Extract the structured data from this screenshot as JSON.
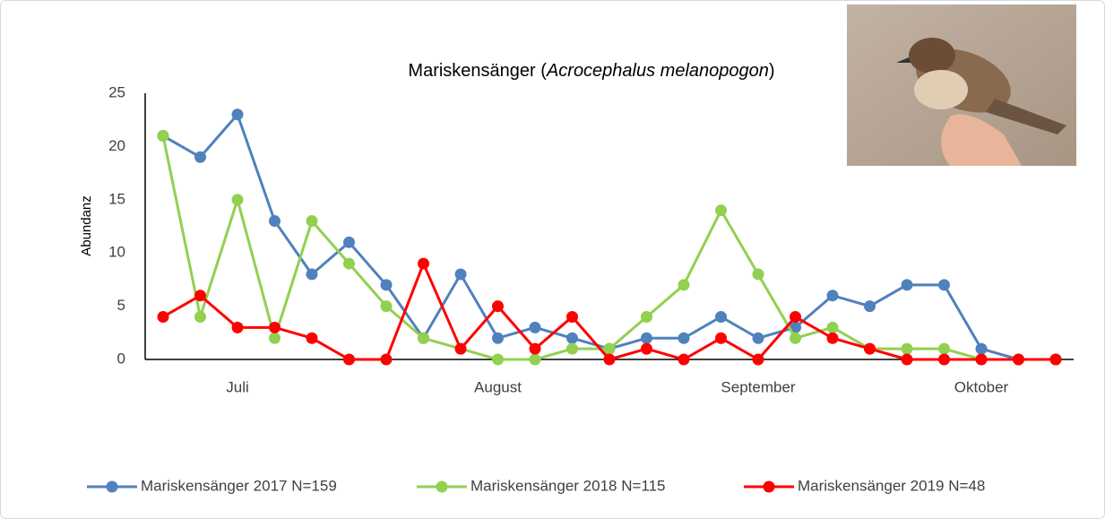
{
  "chart_data": {
    "type": "line",
    "title": [
      "Mariskensänger (",
      "Acrocephalus melanopogon",
      ")"
    ],
    "y_label": "Abundanz",
    "categories": [
      null,
      null,
      "Juli",
      null,
      null,
      null,
      null,
      null,
      null,
      "August",
      null,
      null,
      null,
      null,
      null,
      null,
      "September",
      null,
      null,
      null,
      null,
      null,
      "Oktober",
      null,
      null
    ],
    "ylim": [
      0,
      25
    ],
    "yticks": [
      0,
      5,
      10,
      15,
      20,
      25
    ],
    "grid": false,
    "legend": "bottom",
    "series": [
      {
        "name": "Mariskensänger 2017 N=159",
        "color": "#4f81bd",
        "values": [
          21,
          19,
          23,
          13,
          8,
          11,
          7,
          2,
          8,
          2,
          3,
          2,
          1,
          2,
          2,
          4,
          2,
          3,
          6,
          5,
          7,
          7,
          1,
          0,
          0
        ]
      },
      {
        "name": "Mariskensänger 2018 N=115",
        "color": "#92d050",
        "values": [
          21,
          4,
          15,
          2,
          13,
          9,
          5,
          2,
          1,
          0,
          0,
          1,
          1,
          4,
          7,
          14,
          8,
          2,
          3,
          1,
          1,
          1,
          0,
          0,
          0
        ]
      },
      {
        "name": "Mariskensänger 2019 N=48",
        "color": "#ff0000",
        "values": [
          4,
          6,
          3,
          3,
          2,
          0,
          0,
          9,
          1,
          5,
          1,
          4,
          0,
          1,
          0,
          2,
          0,
          4,
          2,
          1,
          0,
          0,
          0,
          0,
          0
        ]
      }
    ]
  }
}
